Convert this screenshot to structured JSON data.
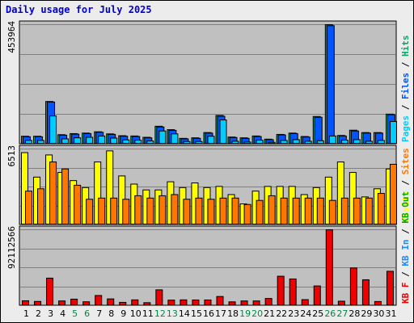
{
  "title": "Daily usage for July 2025",
  "colors": {
    "pages": "#00ccff",
    "files": "#0055ff",
    "hits": "#00aa66",
    "sites": "#ff7700",
    "visits": "#ffff00",
    "kbin": "#2288ff",
    "kbout": "#00aa00",
    "kbf": "#ee0000",
    "weekend": "#008844",
    "weekday": "#000000",
    "panel": "#c0c0c0",
    "grid": "#808080"
  },
  "chart_data": [
    {
      "type": "bar",
      "name": "pages-files-hits",
      "ylabel_parts": [
        "Pages",
        "/",
        "Files",
        "/",
        "Hits"
      ],
      "ymax_label": "453964",
      "ylim": [
        0,
        453964
      ],
      "categories": [
        "1",
        "2",
        "3",
        "4",
        "5",
        "6",
        "7",
        "8",
        "9",
        "10",
        "11",
        "12",
        "13",
        "14",
        "15",
        "16",
        "17",
        "18",
        "19",
        "20",
        "21",
        "22",
        "23",
        "24",
        "25",
        "26",
        "27",
        "28",
        "29",
        "30",
        "31"
      ],
      "series": [
        {
          "name": "Hits",
          "values": [
            30000,
            30000,
            162000,
            36000,
            40000,
            42000,
            47000,
            39000,
            32000,
            31000,
            26000,
            68000,
            55000,
            22000,
            24000,
            44000,
            109000,
            27000,
            24000,
            31000,
            19000,
            37000,
            42000,
            29000,
            105000,
            453964,
            33000,
            53000,
            44000,
            44000,
            114000
          ]
        },
        {
          "name": "Files",
          "values": [
            28000,
            28000,
            160000,
            34000,
            38000,
            40000,
            45000,
            37000,
            30000,
            29000,
            24000,
            65000,
            52000,
            20000,
            22000,
            42000,
            106000,
            25000,
            22000,
            29000,
            17000,
            35000,
            40000,
            27000,
            102000,
            450000,
            31000,
            50000,
            42000,
            42000,
            112000
          ]
        },
        {
          "name": "Pages",
          "values": [
            14000,
            14000,
            107000,
            20000,
            24000,
            26000,
            31000,
            23000,
            16000,
            15000,
            12000,
            50000,
            39000,
            10000,
            10000,
            30000,
            92000,
            11000,
            8000,
            15000,
            7000,
            14000,
            17000,
            11000,
            13000,
            31000,
            15000,
            17000,
            11000,
            14000,
            86000
          ]
        }
      ]
    },
    {
      "type": "bar",
      "name": "visits-sites",
      "ylabel_parts": [
        "Visits",
        "/",
        "Sites"
      ],
      "ymax_label": "6513",
      "ylim": [
        0,
        6513
      ],
      "categories": [
        "1",
        "2",
        "3",
        "4",
        "5",
        "6",
        "7",
        "8",
        "9",
        "10",
        "11",
        "12",
        "13",
        "14",
        "15",
        "16",
        "17",
        "18",
        "19",
        "20",
        "21",
        "22",
        "23",
        "24",
        "25",
        "26",
        "27",
        "28",
        "29",
        "30",
        "31"
      ],
      "series": [
        {
          "name": "Visits",
          "values": [
            6200,
            4100,
            6000,
            4500,
            3800,
            3200,
            5400,
            6350,
            4200,
            3500,
            3000,
            3000,
            3700,
            3200,
            3600,
            3200,
            3300,
            2600,
            1800,
            2900,
            3300,
            3300,
            3300,
            2600,
            3200,
            4100,
            5400,
            4500,
            2400,
            3100,
            4800
          ]
        },
        {
          "name": "Sites",
          "values": [
            2900,
            3100,
            5400,
            4800,
            3400,
            2200,
            2300,
            2300,
            2200,
            2500,
            2300,
            2500,
            2600,
            2200,
            2300,
            2200,
            2300,
            2300,
            1750,
            2100,
            2500,
            2300,
            2300,
            2300,
            2300,
            2100,
            2300,
            2300,
            2300,
            2700,
            5200
          ]
        }
      ]
    },
    {
      "type": "bar",
      "name": "kb",
      "ylabel_parts": [
        "KB F",
        "/",
        "KB In",
        "/",
        "KB Out"
      ],
      "ymax_label": "92112566",
      "ylim": [
        0,
        92112566
      ],
      "categories": [
        "1",
        "2",
        "3",
        "4",
        "5",
        "6",
        "7",
        "8",
        "9",
        "10",
        "11",
        "12",
        "13",
        "14",
        "15",
        "16",
        "17",
        "18",
        "19",
        "20",
        "21",
        "22",
        "23",
        "24",
        "25",
        "26",
        "27",
        "28",
        "29",
        "30",
        "31"
      ],
      "series": [
        {
          "name": "KB F",
          "values": [
            5900000,
            5100000,
            33400000,
            5700000,
            7900000,
            4700000,
            12300000,
            8200000,
            4000000,
            7000000,
            3600000,
            19200000,
            6700000,
            7000000,
            6900000,
            6900000,
            11100000,
            4600000,
            5700000,
            5700000,
            8700000,
            35700000,
            32400000,
            7300000,
            23900000,
            92112566,
            5400000,
            45700000,
            31400000,
            5000000,
            41700000
          ]
        }
      ]
    }
  ]
}
